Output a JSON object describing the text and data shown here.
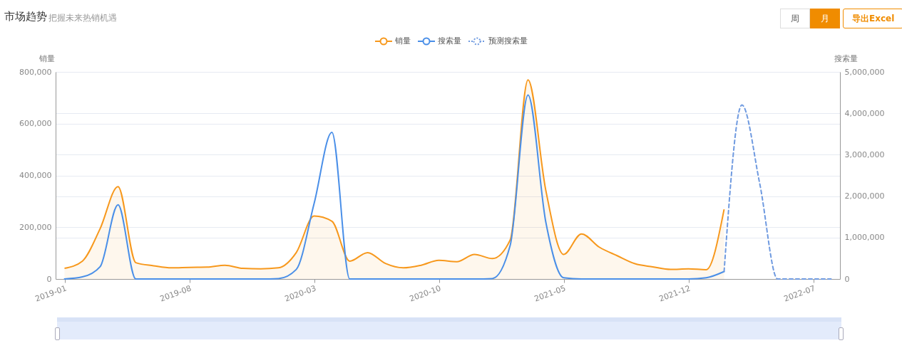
{
  "chart_data": {
    "type": "line",
    "title": "市场趋势",
    "subtitle": "把握未来热销机遇",
    "ylabel": "销量",
    "y2label": "搜索量",
    "annotations": [
      "周",
      "月",
      "导出Excel"
    ],
    "categories": [
      "2019-01",
      null,
      null,
      null,
      null,
      null,
      null,
      "2019-08",
      null,
      null,
      null,
      null,
      null,
      null,
      "2020-03",
      null,
      null,
      null,
      null,
      null,
      null,
      "2020-10",
      null,
      null,
      null,
      null,
      null,
      null,
      "2021-05",
      null,
      null,
      null,
      null,
      null,
      null,
      "2021-12",
      null,
      null,
      null,
      null,
      null,
      null,
      "2022-07",
      null
    ],
    "series": [
      {
        "name": "销量",
        "type": "area",
        "color": "#f7981c",
        "values": [
          41000,
          69000,
          195000,
          357000,
          63000,
          51000,
          43000,
          45000,
          46000,
          53000,
          41000,
          39000,
          43000,
          102000,
          243000,
          223000,
          69000,
          102000,
          60000,
          43000,
          53000,
          72000,
          67000,
          95000,
          79000,
          151000,
          769000,
          342000,
          95000,
          174000,
          123000,
          90000,
          59000,
          47000,
          37000,
          39000,
          36000,
          269000,
          null,
          null,
          null,
          null,
          null,
          null
        ]
      },
      {
        "name": "搜索量",
        "color": "#4a8fe8",
        "axis": "y2",
        "values": [
          0,
          50000,
          300000,
          1790000,
          0,
          0,
          0,
          0,
          0,
          0,
          0,
          0,
          10000,
          230000,
          1820000,
          3540000,
          0,
          0,
          0,
          0,
          0,
          0,
          0,
          0,
          10000,
          810000,
          4440000,
          1370000,
          30000,
          0,
          0,
          0,
          0,
          0,
          0,
          0,
          30000,
          180000,
          null,
          null,
          null,
          null,
          null,
          null
        ]
      },
      {
        "name": "预测搜索量",
        "color": "#6f9ae0",
        "axis": "y2",
        "line_style": "dashed",
        "values": [
          null,
          null,
          null,
          null,
          null,
          null,
          null,
          null,
          null,
          null,
          null,
          null,
          null,
          null,
          null,
          null,
          null,
          null,
          null,
          null,
          null,
          null,
          null,
          null,
          null,
          null,
          null,
          null,
          null,
          null,
          null,
          null,
          null,
          null,
          null,
          null,
          null,
          180000,
          4200000,
          2300000,
          0,
          0,
          0,
          0
        ]
      }
    ],
    "ylim": [
      0,
      800000
    ],
    "yticks": [
      0,
      {
        "value": 200000,
        "label": "200,000"
      },
      {
        "value": 400000,
        "label": "400,000"
      },
      {
        "value": 600000,
        "label": "600,000"
      },
      {
        "value": 800000,
        "label": "800,000"
      }
    ],
    "y2lim": [
      0,
      5000000
    ],
    "y2ticks": [
      0,
      {
        "value": 1000000,
        "label": "1,000,000"
      },
      {
        "value": 2000000,
        "label": "2,000,000"
      },
      {
        "value": 3000000,
        "label": "3,000,000"
      },
      {
        "value": 4000000,
        "label": "4,000,000"
      },
      {
        "value": 5000000,
        "label": "5,000,000"
      }
    ],
    "grid": true,
    "legend": "top"
  }
}
